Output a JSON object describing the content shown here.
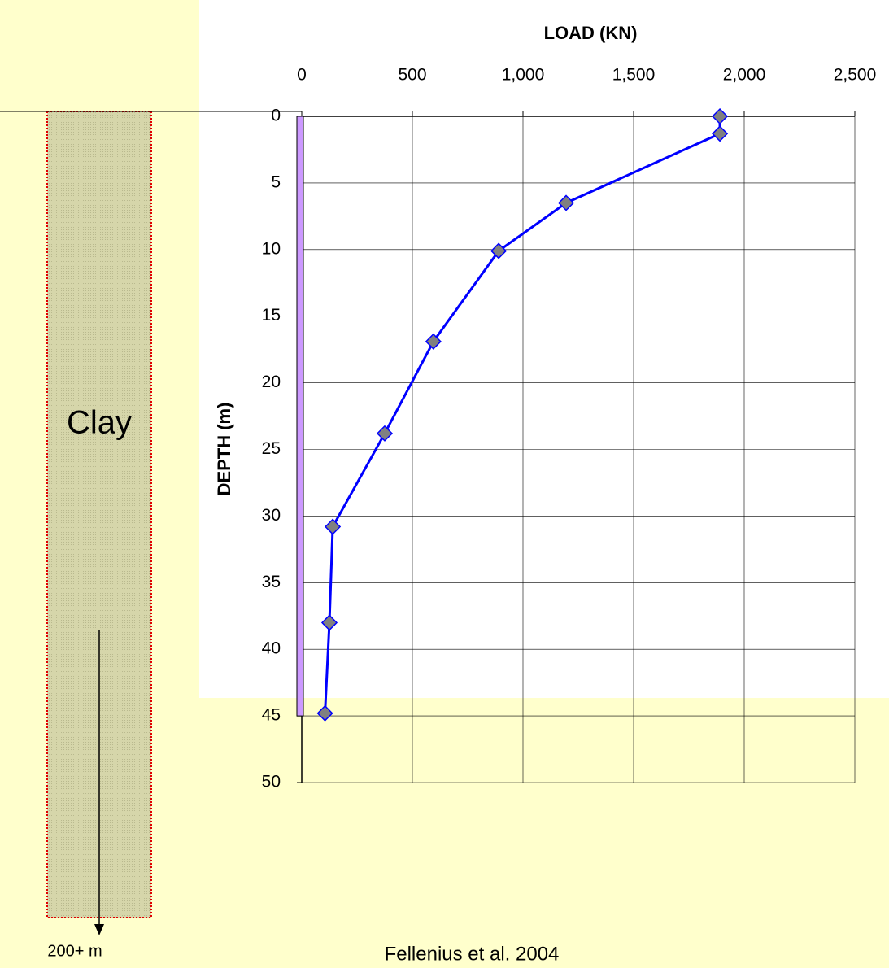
{
  "chart_data": {
    "type": "line",
    "x_label": "LOAD  (KN)",
    "y_label": "DEPTH  (m)",
    "x": [
      1890,
      1890,
      1195,
      890,
      595,
      375,
      140,
      125,
      105
    ],
    "values": [
      0,
      1.3,
      6.5,
      10.1,
      16.9,
      23.8,
      30.8,
      38,
      44.8
    ],
    "color": "#0000ff",
    "marker_color": "#808080",
    "xlim": [
      0,
      2500
    ],
    "xticks": [
      0,
      500,
      {
        "value": 1000,
        "label": "1,000"
      },
      {
        "value": 1500,
        "label": "1,500"
      },
      {
        "value": 2000,
        "label": "2,000"
      },
      {
        "value": 2500,
        "label": "2,500"
      }
    ],
    "ylim": [
      0,
      50
    ],
    "yticks": [
      0,
      5,
      10,
      15,
      20,
      25,
      30,
      35,
      40,
      45,
      50
    ],
    "y_inverted": true,
    "x_axis_position": "top",
    "grid": true,
    "pile_depth": 45,
    "pile_color": "#cc99ff",
    "soil_label": "Clay",
    "soil_depth_label": "200+ m",
    "source": "Fellenius et al. 2004"
  }
}
